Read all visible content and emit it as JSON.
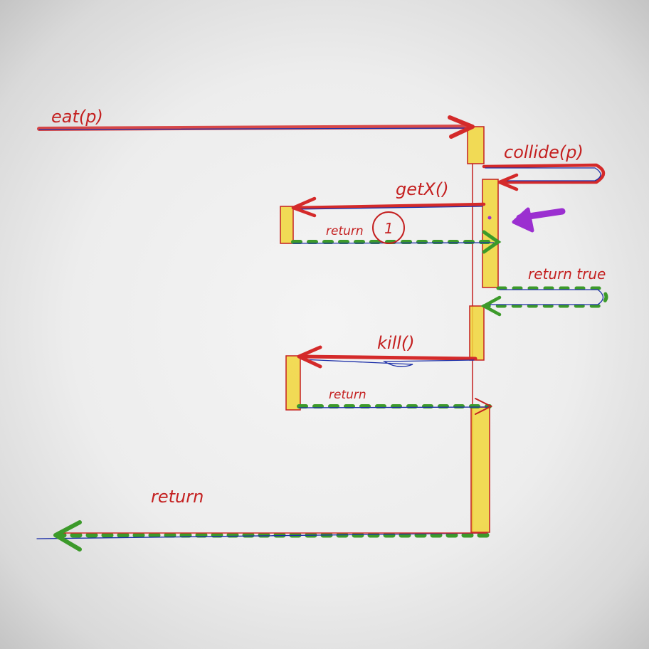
{
  "messages": {
    "eat_call": "eat(p)",
    "collide_call": "collide(p)",
    "getx_call": "getX()",
    "getx_return": "return",
    "getx_return_value": "1",
    "collide_return": "return true",
    "kill_call": "kill()",
    "kill_return": "return",
    "eat_return": "return"
  },
  "colors": {
    "call_arrow": "#d42a2a",
    "return_arrow": "#3c9a2a",
    "activation": "#f1d63a",
    "pointer_marker": "#9b2fd0"
  }
}
